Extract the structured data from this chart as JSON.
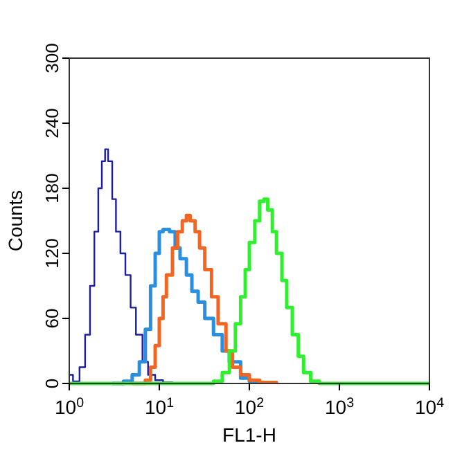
{
  "chart_data": {
    "type": "step",
    "xlabel": "FL1-H",
    "ylabel": "Counts",
    "log": "x",
    "xlim": [
      1,
      10000
    ],
    "ylim": [
      0,
      300
    ],
    "xticks": [
      {
        "value": 1,
        "label": "10$^{0}$"
      },
      {
        "value": 10,
        "label": "10$^{1}$"
      },
      {
        "value": 100,
        "label": "10$^{2}$"
      },
      {
        "value": 1000,
        "label": "10$^{3}$"
      },
      {
        "value": 10000,
        "label": "10$^{4}$"
      }
    ],
    "yticks": [
      0,
      60,
      120,
      180,
      240,
      300
    ],
    "grid": false,
    "series": [
      {
        "color": "#1c1ca8",
        "x": [
          1,
          1.1,
          1.3,
          1.5,
          1.7,
          1.9,
          2.1,
          2.3,
          2.5,
          2.7,
          3,
          3.3,
          3.7,
          4.2,
          4.8,
          5.5,
          6.5,
          7.5,
          9,
          11,
          14,
          20
        ],
        "values": [
          8,
          2,
          15,
          45,
          90,
          140,
          180,
          205,
          216,
          205,
          170,
          140,
          120,
          100,
          70,
          45,
          20,
          8,
          3,
          1,
          0,
          0
        ]
      },
      {
        "color": "#2b8fe0",
        "x": [
          3,
          4,
          5,
          6,
          7,
          8,
          9,
          10,
          11,
          12,
          13,
          15,
          17,
          20,
          23,
          27,
          32,
          40,
          50,
          60,
          80,
          100,
          130
        ],
        "values": [
          0,
          2,
          8,
          20,
          50,
          90,
          120,
          140,
          142,
          142,
          140,
          125,
          115,
          100,
          85,
          75,
          60,
          45,
          30,
          20,
          5,
          2,
          0
        ]
      },
      {
        "color": "#f26522",
        "x": [
          5,
          7,
          8,
          9,
          10,
          11,
          12,
          14,
          16,
          18,
          20,
          22,
          25,
          28,
          32,
          38,
          45,
          55,
          65,
          80,
          100,
          130,
          200
        ],
        "values": [
          0,
          3,
          15,
          35,
          60,
          80,
          100,
          125,
          140,
          150,
          155,
          150,
          140,
          125,
          105,
          80,
          55,
          30,
          15,
          8,
          3,
          1,
          0
        ]
      },
      {
        "color": "#2ef02e",
        "x": [
          1,
          30,
          40,
          50,
          60,
          70,
          80,
          90,
          100,
          115,
          130,
          145,
          160,
          180,
          200,
          230,
          260,
          300,
          350,
          400,
          480,
          600,
          10000
        ],
        "values": [
          0,
          0,
          2,
          10,
          30,
          55,
          80,
          105,
          130,
          150,
          168,
          170,
          160,
          140,
          120,
          95,
          70,
          45,
          25,
          10,
          2,
          0,
          0
        ]
      }
    ]
  }
}
